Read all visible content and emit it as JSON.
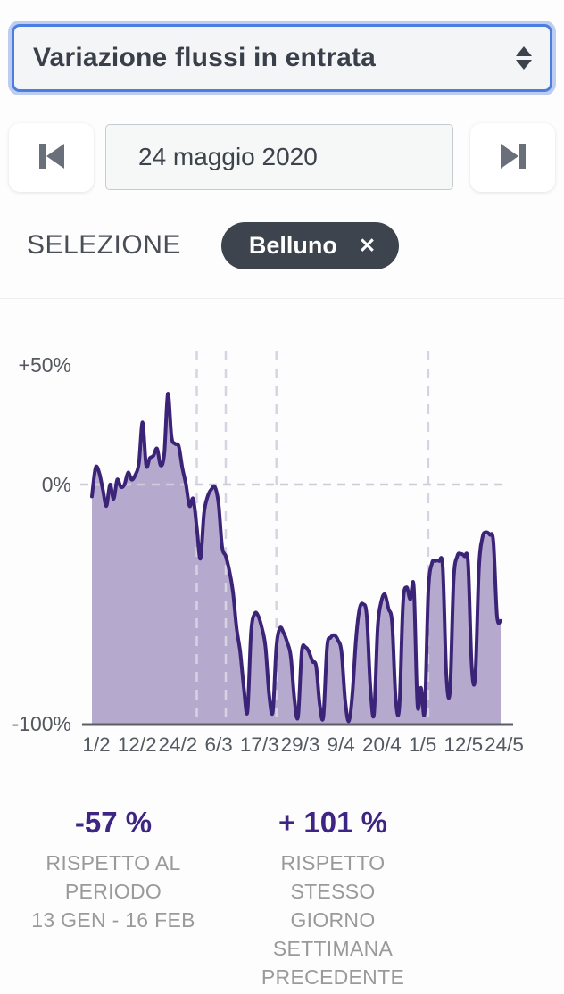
{
  "select": {
    "value": "Variazione flussi in entrata"
  },
  "date_nav": {
    "date": "24 maggio 2020"
  },
  "selection": {
    "label": "SELEZIONE",
    "chip": "Belluno",
    "chip_close_glyph": "✕"
  },
  "stats": [
    {
      "value": "-57 %",
      "lines": [
        "RISPETTO AL",
        "PERIODO",
        "13 GEN - 16 FEB"
      ]
    },
    {
      "value": "+ 101 %",
      "lines": [
        "RISPETTO STESSO",
        "GIORNO",
        "SETTIMANA",
        "PRECEDENTE"
      ]
    }
  ],
  "colors": {
    "focus_blue": "#4e7de2",
    "focus_glow": "#bccdf0",
    "chip_bg": "#3e444e",
    "stat_purple": "#3e2583",
    "label_gray": "#9a9a9a"
  },
  "chart_data": {
    "type": "area",
    "series_name": "Variazione flussi in entrata — Belluno",
    "x_start_date": "1/2/2020",
    "x_end_date": "24/5/2020",
    "x_tick_labels": [
      "1/2",
      "12/2",
      "24/2",
      "6/3",
      "17/3",
      "29/3",
      "9/4",
      "20/4",
      "1/5",
      "12/5",
      "24/5"
    ],
    "y_tick_labels": [
      "+50%",
      "0%",
      "-100%"
    ],
    "y_tick_values": [
      50,
      0,
      -100
    ],
    "ylim": [
      -100,
      50
    ],
    "unit": "%",
    "grid": "dashed event lines + zero line",
    "event_gridline_days_from_start": [
      29,
      37,
      51,
      93
    ],
    "line_color": "#3b2478",
    "fill_color": "#b6a9ce",
    "grid_color": "#d7d3e3",
    "axis_color": "#5a5f66",
    "tick_text_color": "#555a61",
    "values": [
      -5,
      7,
      5,
      -2,
      -9,
      0,
      -6,
      2,
      -1,
      0,
      5,
      2,
      4,
      9,
      26,
      8,
      11,
      12,
      15,
      8,
      13,
      38,
      20,
      17,
      16,
      7,
      0,
      -9,
      -6,
      -18,
      -31,
      -12,
      -5,
      -2,
      -1,
      -8,
      -26,
      -30,
      -36,
      -45,
      -60,
      -70,
      -85,
      -95,
      -62,
      -54,
      -55,
      -60,
      -68,
      -88,
      -95,
      -68,
      -60,
      -62,
      -66,
      -72,
      -90,
      -97,
      -70,
      -68,
      -70,
      -74,
      -76,
      -92,
      -97,
      -68,
      -64,
      -63,
      -65,
      -70,
      -90,
      -99,
      -88,
      -65,
      -52,
      -50,
      -55,
      -85,
      -96,
      -60,
      -49,
      -46,
      -52,
      -58,
      -90,
      -93,
      -50,
      -43,
      -48,
      -43,
      -92,
      -85,
      -95,
      -45,
      -33,
      -32,
      -32,
      -35,
      -80,
      -86,
      -40,
      -30,
      -29,
      -30,
      -33,
      -76,
      -80,
      -35,
      -22,
      -20,
      -21,
      -24,
      -55,
      -57
    ]
  }
}
